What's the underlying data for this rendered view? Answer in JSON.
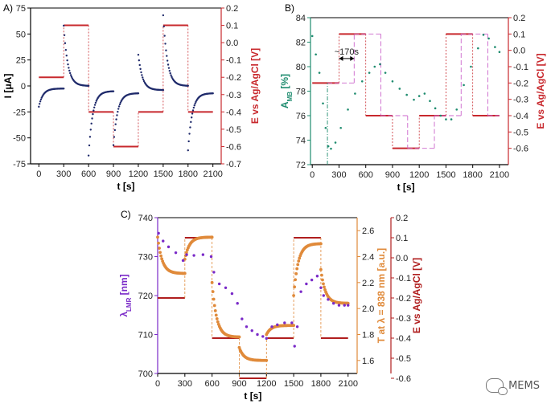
{
  "chart_data": [
    {
      "type": "scatter",
      "panel": "A)",
      "xlabel": "t [s]",
      "ylabel": "I [μA]",
      "y2label": "E vs Ag/AgCl [V]",
      "xlim": [
        -100,
        2200
      ],
      "ylim": [
        -75,
        75
      ],
      "y2lim": [
        -0.7,
        0.2
      ],
      "xticks": [
        0,
        300,
        600,
        900,
        1200,
        1500,
        1800,
        2100
      ],
      "yticks": [
        -75,
        -50,
        -25,
        0,
        25,
        50,
        75
      ],
      "y2ticks": [
        -0.7,
        -0.6,
        -0.5,
        -0.4,
        -0.3,
        -0.2,
        -0.1,
        0.0,
        0.1,
        0.2
      ],
      "colors": {
        "current": "#1f2a6b",
        "potential": "#c8282d"
      },
      "series": [
        {
          "name": "current",
          "segments": [
            {
              "t0": 0,
              "t1": 300,
              "i0": -20,
              "i1": -2.5
            },
            {
              "t0": 300,
              "t1": 600,
              "i0": 58,
              "i1": 0
            },
            {
              "t0": 600,
              "t1": 900,
              "i0": -67,
              "i1": -5
            },
            {
              "t0": 900,
              "t1": 1200,
              "i0": -57,
              "i1": -7
            },
            {
              "t0": 1200,
              "t1": 1500,
              "i0": 30,
              "i1": -4
            },
            {
              "t0": 1500,
              "t1": 1800,
              "i0": 68,
              "i1": 0
            },
            {
              "t0": 1800,
              "t1": 2100,
              "i0": -62,
              "i1": -7
            }
          ]
        },
        {
          "name": "potential",
          "steps": [
            {
              "t0": 0,
              "t1": 300,
              "e": -0.2
            },
            {
              "t0": 300,
              "t1": 600,
              "e": 0.1
            },
            {
              "t0": 600,
              "t1": 900,
              "e": -0.4
            },
            {
              "t0": 900,
              "t1": 1200,
              "e": -0.6
            },
            {
              "t0": 1200,
              "t1": 1500,
              "e": -0.4
            },
            {
              "t0": 1500,
              "t1": 1800,
              "e": 0.1
            },
            {
              "t0": 1800,
              "t1": 2100,
              "e": -0.4
            }
          ]
        }
      ]
    },
    {
      "type": "scatter",
      "panel": "B)",
      "xlabel": "t [s]",
      "ylabel": "A",
      "ylabel_sub": "MB",
      "ylabel_suffix": " [%]",
      "y2label": "E vs Ag/AgCl [V]",
      "annotation": "~170s",
      "xlim": [
        -20,
        2200
      ],
      "ylim": [
        72,
        84
      ],
      "y2lim": [
        -0.7,
        0.2
      ],
      "xticks": [
        0,
        300,
        600,
        900,
        1200,
        1500,
        1800,
        2100
      ],
      "yticks": [
        72,
        74,
        76,
        78,
        80,
        82,
        84
      ],
      "y2ticks": [
        -0.6,
        -0.5,
        -0.4,
        -0.3,
        -0.2,
        -0.1,
        0.0,
        0.1,
        0.2
      ],
      "colors": {
        "absorbance": "#1f8c6f",
        "potential": "#c8282d",
        "guide": "#cc66cc"
      },
      "series": [
        {
          "name": "absorbance",
          "points": [
            [
              0,
              82.5
            ],
            [
              40,
              81
            ],
            [
              80,
              79.5
            ],
            [
              120,
              77
            ],
            [
              150,
              75
            ],
            [
              180,
              73.5
            ],
            [
              210,
              73.3
            ],
            [
              260,
              73.8
            ],
            [
              320,
              75
            ],
            [
              400,
              76.5
            ],
            [
              480,
              77.8
            ],
            [
              560,
              78.8
            ],
            [
              640,
              79.5
            ],
            [
              700,
              80
            ],
            [
              760,
              80.2
            ],
            [
              820,
              79.5
            ],
            [
              900,
              78.8
            ],
            [
              980,
              78.2
            ],
            [
              1060,
              77.7
            ],
            [
              1140,
              77.3
            ],
            [
              1200,
              77.6
            ],
            [
              1260,
              77.8
            ],
            [
              1320,
              77.2
            ],
            [
              1380,
              76.6
            ],
            [
              1440,
              76.0
            ],
            [
              1500,
              75.7
            ],
            [
              1560,
              75.7
            ],
            [
              1620,
              76.5
            ],
            [
              1700,
              78.5
            ],
            [
              1780,
              80.0
            ],
            [
              1860,
              81.5
            ],
            [
              1920,
              82.6
            ],
            [
              1980,
              82.3
            ],
            [
              2050,
              81.6
            ],
            [
              2100,
              81.2
            ]
          ]
        },
        {
          "name": "potential",
          "steps": [
            {
              "t0": 0,
              "t1": 300,
              "e": -0.2
            },
            {
              "t0": 300,
              "t1": 600,
              "e": 0.1
            },
            {
              "t0": 600,
              "t1": 900,
              "e": -0.4
            },
            {
              "t0": 900,
              "t1": 1200,
              "e": -0.6
            },
            {
              "t0": 1200,
              "t1": 1500,
              "e": -0.4
            },
            {
              "t0": 1500,
              "t1": 1800,
              "e": 0.1
            },
            {
              "t0": 1800,
              "t1": 2100,
              "e": -0.4
            }
          ],
          "delay_s": 170
        }
      ]
    },
    {
      "type": "scatter",
      "panel": "C)",
      "xlabel": "t [s]",
      "ylabel": "λ",
      "ylabel_sub": "LMR",
      "ylabel_suffix": " [nm]",
      "y2label": "T at λ = 838 nm [a.u.]",
      "y3label": "E vs Ag/AgCl [V]",
      "xlim": [
        0,
        2200
      ],
      "ylim": [
        700,
        740
      ],
      "y2lim": [
        1.5,
        2.7
      ],
      "y3lim": [
        -0.6,
        0.2
      ],
      "xticks": [
        0,
        300,
        600,
        900,
        1200,
        1500,
        1800,
        2100
      ],
      "yticks": [
        700,
        710,
        720,
        730,
        740
      ],
      "y2ticks": [
        1.6,
        1.8,
        2.0,
        2.2,
        2.4,
        2.6
      ],
      "y3ticks": [
        -0.6,
        -0.5,
        -0.4,
        -0.3,
        -0.2,
        -0.1,
        0.0,
        0.1,
        0.2
      ],
      "colors": {
        "lmr": "#7a2ac8",
        "transmission": "#e08a3a",
        "potential": "#b01e1e"
      },
      "series": [
        {
          "name": "lmr",
          "points": [
            [
              10,
              736
            ],
            [
              60,
              734
            ],
            [
              120,
              732.5
            ],
            [
              200,
              731
            ],
            [
              280,
              729
            ],
            [
              320,
              730.5
            ],
            [
              400,
              730.3
            ],
            [
              500,
              730.5
            ],
            [
              590,
              730
            ],
            [
              620,
              726
            ],
            [
              680,
              723
            ],
            [
              750,
              722
            ],
            [
              820,
              720.5
            ],
            [
              880,
              718
            ],
            [
              930,
              714
            ],
            [
              980,
              712
            ],
            [
              1040,
              711
            ],
            [
              1100,
              710
            ],
            [
              1160,
              709.5
            ],
            [
              1200,
              709
            ],
            [
              1260,
              712
            ],
            [
              1320,
              712.5
            ],
            [
              1400,
              713
            ],
            [
              1480,
              713
            ],
            [
              1510,
              707
            ],
            [
              1540,
              712
            ],
            [
              1580,
              721
            ],
            [
              1640,
              723
            ],
            [
              1700,
              724
            ],
            [
              1760,
              725
            ],
            [
              1800,
              722
            ],
            [
              1830,
              720
            ],
            [
              1880,
              719
            ],
            [
              1940,
              718
            ],
            [
              2000,
              717.5
            ],
            [
              2060,
              717.5
            ],
            [
              2100,
              717.5
            ]
          ]
        },
        {
          "name": "transmission",
          "segments": [
            {
              "t0": 0,
              "t1": 300,
              "v0": 2.55,
              "v1": 2.27
            },
            {
              "t0": 300,
              "t1": 600,
              "v0": 2.38,
              "v1": 2.55
            },
            {
              "t0": 600,
              "t1": 900,
              "v0": 2.2,
              "v1": 1.78
            },
            {
              "t0": 900,
              "t1": 1200,
              "v0": 1.7,
              "v1": 1.6
            },
            {
              "t0": 1200,
              "t1": 1500,
              "v0": 1.8,
              "v1": 1.87
            },
            {
              "t0": 1500,
              "t1": 1800,
              "v0": 2.1,
              "v1": 2.5
            },
            {
              "t0": 1800,
              "t1": 2100,
              "v0": 2.3,
              "v1": 2.04
            }
          ]
        },
        {
          "name": "potential",
          "steps": [
            {
              "t0": 0,
              "t1": 300,
              "e": -0.2
            },
            {
              "t0": 300,
              "t1": 600,
              "e": 0.1
            },
            {
              "t0": 600,
              "t1": 900,
              "e": -0.4
            },
            {
              "t0": 900,
              "t1": 1200,
              "e": -0.6
            },
            {
              "t0": 1200,
              "t1": 1500,
              "e": -0.4
            },
            {
              "t0": 1500,
              "t1": 1800,
              "e": 0.1
            },
            {
              "t0": 1800,
              "t1": 2100,
              "e": -0.4
            }
          ]
        }
      ]
    }
  ],
  "watermark": {
    "text": "MEMS",
    "icon": "chat-bubbles-icon"
  }
}
